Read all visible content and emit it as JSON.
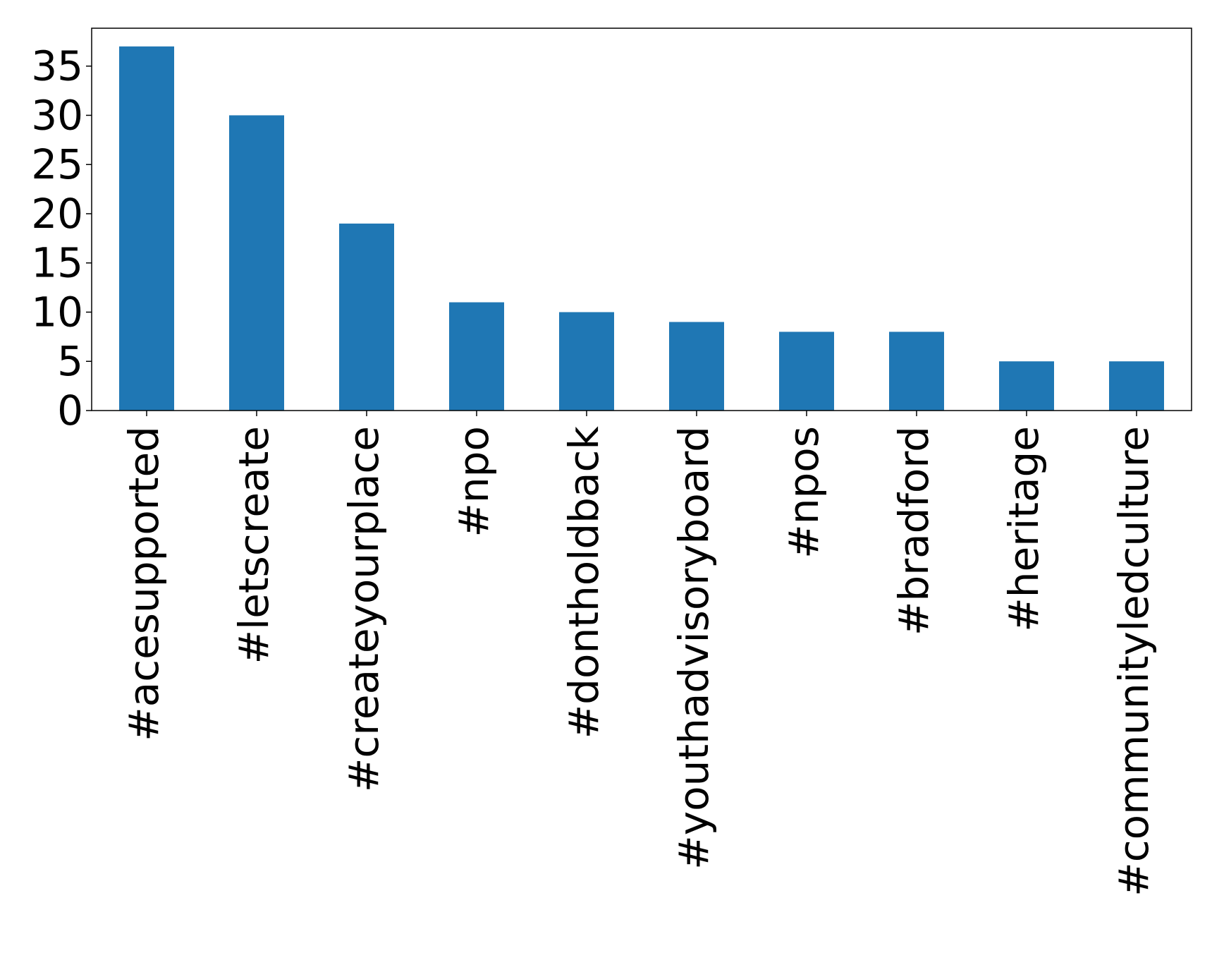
{
  "chart_data": {
    "type": "bar",
    "title": "",
    "xlabel": "",
    "ylabel": "",
    "categories": [
      "#acesupported",
      "#letscreate",
      "#createyourplace",
      "#npo",
      "#dontholdback",
      "#youthadvisoryboard",
      "#npos",
      "#bradford",
      "#heritage",
      "#communityledculture"
    ],
    "values": [
      37,
      30,
      19,
      11,
      10,
      9,
      8,
      8,
      5,
      5
    ],
    "ylim": [
      0,
      38.85
    ],
    "yticks": [
      0,
      5,
      10,
      15,
      20,
      25,
      30,
      35
    ],
    "grid": false,
    "legend": "none",
    "bar_color": "#1f77b4",
    "axis_color": "#000000"
  }
}
